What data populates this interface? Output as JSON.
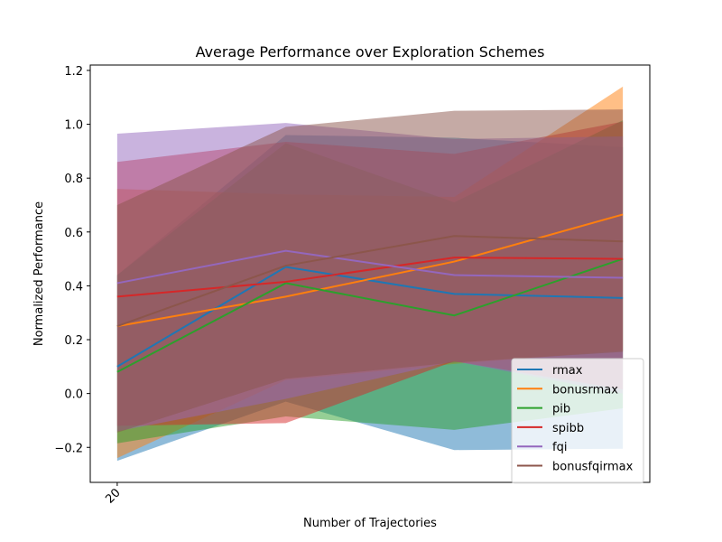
{
  "chart_data": {
    "type": "line",
    "title": "Average Performance over Exploration Schemes",
    "xlabel": "Number of Trajectories",
    "ylabel": "Normalized Performance",
    "x_tick_labels": [
      "20"
    ],
    "y_ticks": [
      -0.2,
      0.0,
      0.2,
      0.4,
      0.6,
      0.8,
      1.0,
      1.2
    ],
    "y_tick_labels": [
      "−0.2",
      "0.0",
      "0.2",
      "0.4",
      "0.6",
      "0.8",
      "1.0",
      "1.2"
    ],
    "ylim": [
      -0.33,
      1.22
    ],
    "x_positions": [
      0,
      1,
      2,
      3
    ],
    "xlim": [
      -0.16,
      3.16
    ],
    "grid": false,
    "legend_position": "lower right",
    "series": [
      {
        "name": "rmax",
        "color": "#1f77b4",
        "values": [
          0.1,
          0.47,
          0.37,
          0.355
        ],
        "lower": [
          -0.25,
          -0.03,
          -0.21,
          -0.205
        ],
        "upper": [
          0.44,
          0.96,
          0.95,
          0.915
        ]
      },
      {
        "name": "bonusrmax",
        "color": "#ff7f0e",
        "values": [
          0.25,
          0.36,
          0.49,
          0.665
        ],
        "lower": [
          -0.24,
          0.05,
          0.11,
          0.16
        ],
        "upper": [
          0.76,
          0.74,
          0.73,
          1.14
        ]
      },
      {
        "name": "pib",
        "color": "#2ca02c",
        "values": [
          0.08,
          0.41,
          0.29,
          0.5
        ],
        "lower": [
          -0.185,
          -0.085,
          -0.135,
          -0.055
        ],
        "upper": [
          0.44,
          0.93,
          0.71,
          1.015
        ]
      },
      {
        "name": "spibb",
        "color": "#d62728",
        "values": [
          0.36,
          0.415,
          0.505,
          0.5
        ],
        "lower": [
          -0.12,
          -0.11,
          0.12,
          0.015
        ],
        "upper": [
          0.86,
          0.935,
          0.89,
          1.01
        ]
      },
      {
        "name": "fqi",
        "color": "#9467bd",
        "values": [
          0.41,
          0.53,
          0.44,
          0.43
        ],
        "lower": [
          -0.14,
          -0.02,
          0.12,
          0.0
        ],
        "upper": [
          0.965,
          1.005,
          0.945,
          0.955
        ]
      },
      {
        "name": "bonusfqirmax",
        "color": "#8c564b",
        "values": [
          0.25,
          0.475,
          0.585,
          0.565
        ],
        "lower": [
          -0.145,
          0.055,
          0.115,
          0.155
        ],
        "upper": [
          0.7,
          0.99,
          1.05,
          1.055
        ]
      }
    ]
  }
}
